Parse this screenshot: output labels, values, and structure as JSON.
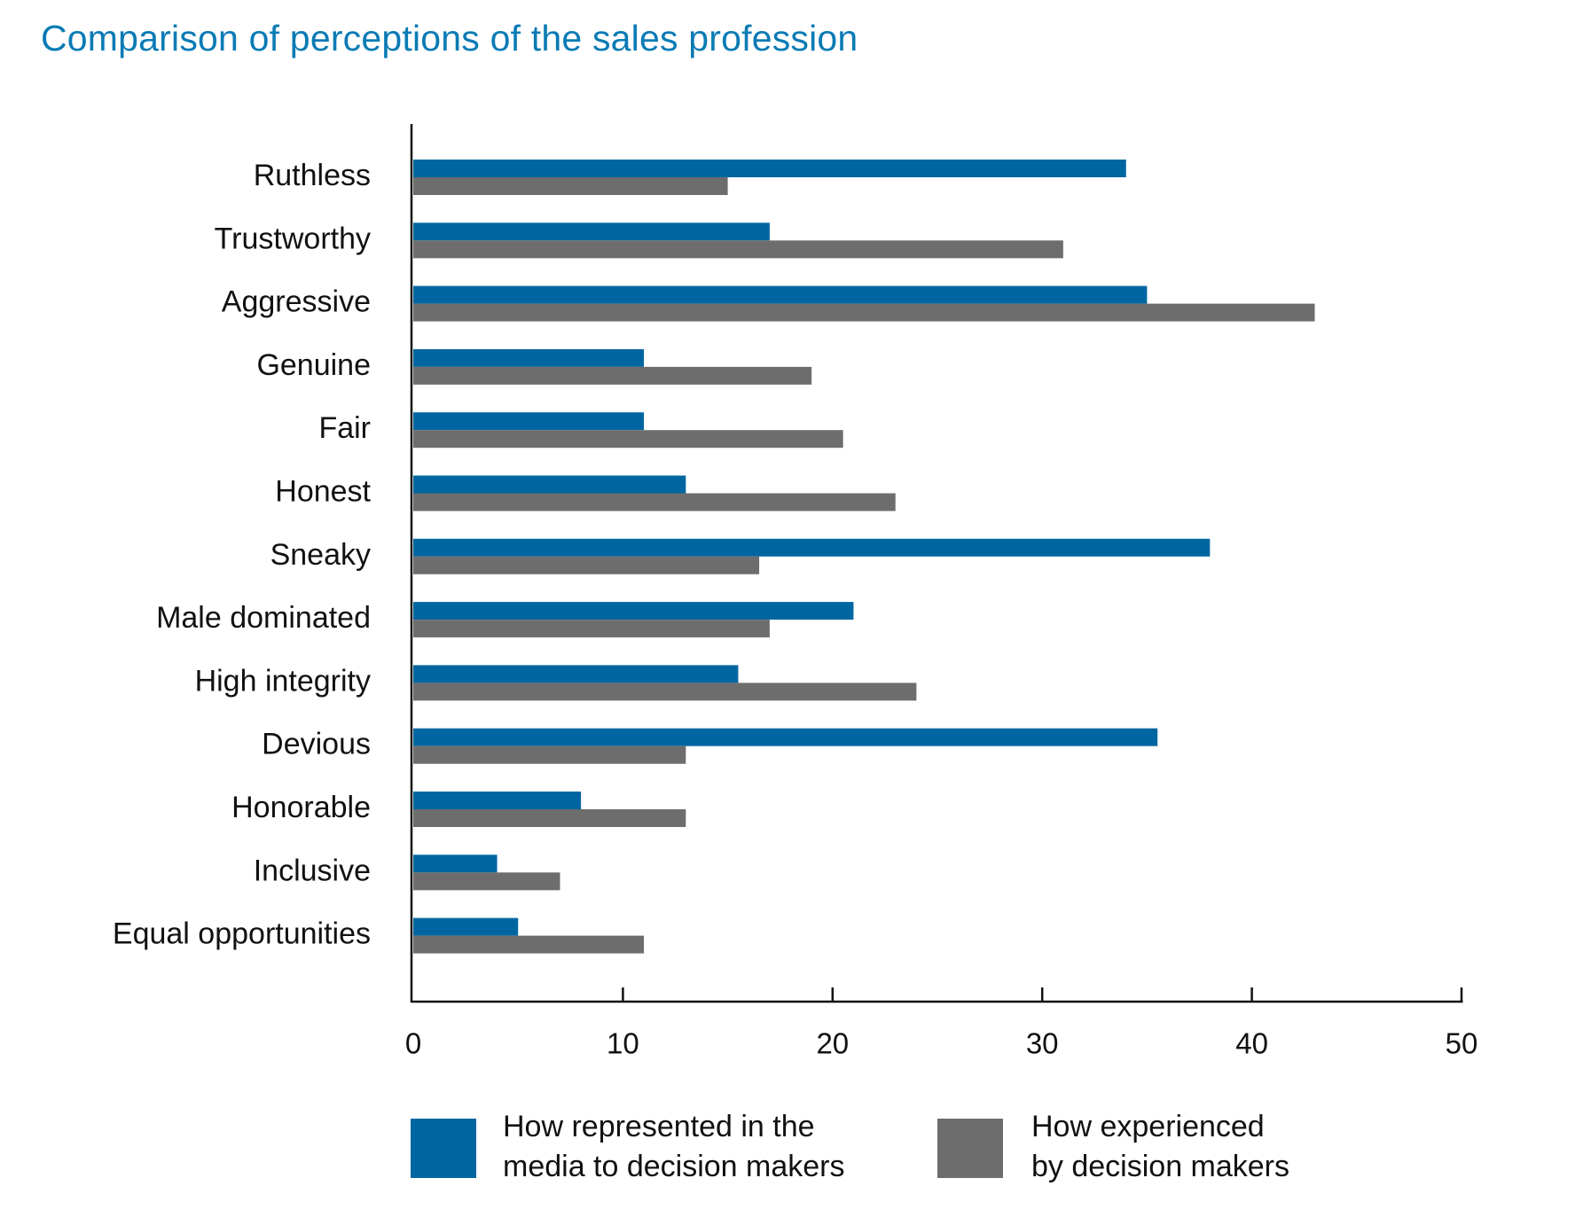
{
  "chart_data": {
    "type": "bar",
    "orientation": "horizontal",
    "title": "Comparison of perceptions of the sales profession",
    "categories": [
      "Ruthless",
      "Trustworthy",
      "Aggressive",
      "Genuine",
      "Fair",
      "Honest",
      "Sneaky",
      "Male dominated",
      "High integrity",
      "Devious",
      "Honorable",
      "Inclusive",
      "Equal opportunities"
    ],
    "series": [
      {
        "name": "How represented in the media to decision makers",
        "name_lines": [
          "How represented in the",
          "media to decision makers"
        ],
        "color": "#0066a1",
        "values": [
          34,
          17,
          35,
          11,
          11,
          13,
          38,
          21,
          15.5,
          35.5,
          8,
          4,
          5
        ]
      },
      {
        "name": "How experienced by decision makers",
        "name_lines": [
          "How experienced",
          "by decision makers"
        ],
        "color": "#6d6d6d",
        "values": [
          15,
          31,
          43,
          19,
          20.5,
          23,
          16.5,
          17,
          24,
          13,
          13,
          7,
          11
        ]
      }
    ],
    "xlim": [
      0,
      50
    ],
    "xticks": [
      0,
      10,
      20,
      30,
      40,
      50
    ],
    "xlabel": "",
    "ylabel": "",
    "grid": false,
    "legend_position": "bottom"
  }
}
